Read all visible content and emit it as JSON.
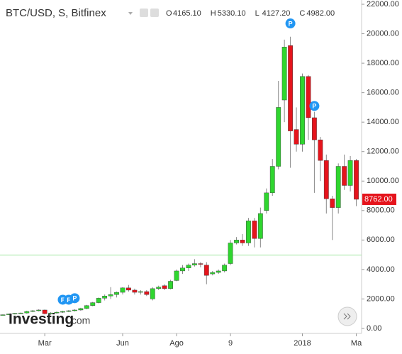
{
  "chart_data": {
    "type": "candlestick",
    "title": "BTC/USD, S, Bitfinex",
    "header": [
      {
        "prefix": "O",
        "label": "4165.10"
      },
      {
        "prefix": "H",
        "label": "5330.10"
      },
      {
        "prefix": "L",
        "label": "4127.20"
      },
      {
        "prefix": "C",
        "label": "4982.00"
      }
    ],
    "categories": [
      null,
      null,
      null,
      null,
      null,
      null,
      null,
      "Mar",
      null,
      null,
      null,
      null,
      null,
      null,
      null,
      null,
      null,
      null,
      null,
      null,
      "Jun",
      null,
      null,
      null,
      null,
      null,
      null,
      null,
      null,
      "Ago",
      null,
      null,
      null,
      null,
      null,
      null,
      null,
      null,
      "9",
      null,
      null,
      null,
      null,
      null,
      null,
      null,
      null,
      null,
      null,
      null,
      "2018",
      null,
      null,
      null,
      null,
      null,
      null,
      null,
      null,
      "Ma"
    ],
    "open": [
      900,
      930,
      980,
      1020,
      1050,
      1150,
      1200,
      1250,
      1000,
      1050,
      1100,
      1150,
      1200,
      1250,
      1350,
      1550,
      1750,
      2050,
      2200,
      2300,
      2450,
      2750,
      2600,
      2450,
      2500,
      2000,
      2700,
      2900,
      2700,
      3250,
      3900,
      4100,
      4300,
      4400,
      4300,
      3700,
      3800,
      3900,
      4400,
      5800,
      6000,
      5800,
      7300,
      6100,
      8000,
      9200,
      11000,
      15500,
      19200,
      13500,
      12500,
      17100,
      14300,
      12800,
      11400,
      8800,
      8200,
      11000,
      9700,
      11400
    ],
    "high": [
      950,
      1000,
      1050,
      1080,
      1200,
      1250,
      1300,
      1280,
      1100,
      1150,
      1200,
      1250,
      1300,
      1400,
      1600,
      1800,
      2100,
      2300,
      2800,
      2500,
      2800,
      2950,
      2700,
      2600,
      2600,
      2800,
      2900,
      3000,
      3300,
      4000,
      4300,
      4400,
      4700,
      4500,
      4500,
      3900,
      4000,
      4400,
      6000,
      6200,
      6400,
      7500,
      7500,
      8200,
      9500,
      11500,
      16800,
      19600,
      19800,
      15000,
      17300,
      17200,
      14700,
      13000,
      11800,
      9000,
      11200,
      11800,
      11700,
      11500
    ],
    "low": [
      880,
      900,
      950,
      980,
      1000,
      1100,
      1150,
      950,
      900,
      1000,
      1050,
      1100,
      1150,
      1200,
      1300,
      1500,
      1700,
      1900,
      2000,
      2100,
      2300,
      2500,
      2300,
      2300,
      2200,
      1900,
      2600,
      2600,
      2650,
      3200,
      3700,
      3900,
      4200,
      4150,
      3000,
      3600,
      3700,
      3800,
      4300,
      5700,
      5600,
      5600,
      5500,
      5500,
      7800,
      9000,
      10800,
      14000,
      10900,
      12000,
      12000,
      12800,
      9200,
      10000,
      7800,
      6000,
      7800,
      9400,
      9300,
      8300
    ],
    "close": [
      930,
      980,
      1020,
      1050,
      1150,
      1200,
      1250,
      1000,
      1050,
      1100,
      1150,
      1200,
      1250,
      1350,
      1550,
      1750,
      2050,
      2200,
      2300,
      2450,
      2750,
      2600,
      2450,
      2500,
      2300,
      2700,
      2800,
      2700,
      3200,
      3900,
      4100,
      4300,
      4400,
      4350,
      3600,
      3800,
      3900,
      4300,
      5800,
      6000,
      5800,
      7300,
      6100,
      7800,
      9200,
      11000,
      15000,
      19100,
      13400,
      12500,
      17100,
      14300,
      12800,
      11400,
      8800,
      8200,
      11000,
      9700,
      11400,
      8762
    ],
    "up_color": "#2fd62f",
    "down_color": "#e5141c",
    "ylim": [
      -340,
      22290
    ],
    "yticks": [
      {
        "value": 0,
        "label": "0.00"
      },
      {
        "value": 2000,
        "label": "2000.00"
      },
      {
        "value": 4000,
        "label": "4000.00"
      },
      {
        "value": 6000,
        "label": "6000.00"
      },
      {
        "value": 8000,
        "label": "8000.00"
      },
      {
        "value": 10000,
        "label": "10000.00"
      },
      {
        "value": 12000,
        "label": "12000.00"
      },
      {
        "value": 14000,
        "label": "14000.00"
      },
      {
        "value": 16000,
        "label": "16000.00"
      },
      {
        "value": 18000,
        "label": "18000.00"
      },
      {
        "value": 20000,
        "label": "20000.00"
      },
      {
        "value": 22000,
        "label": "22000.00"
      }
    ],
    "last_price": {
      "value": 8762,
      "label": "8762.00"
    },
    "hline": {
      "value": 4982,
      "color": "#9be59b"
    },
    "annotations": [
      {
        "text": "F",
        "category_index": 10,
        "y": 1950
      },
      {
        "text": "F",
        "category_index": 11,
        "y": 1950
      },
      {
        "text": "P",
        "category_index": 12,
        "y": 2050
      },
      {
        "text": "P",
        "category_index": 48,
        "y": 20700
      },
      {
        "text": "P",
        "category_index": 52,
        "y": 15100
      }
    ],
    "logo": {
      "brand": "Investing",
      "suffix": ".com"
    }
  }
}
